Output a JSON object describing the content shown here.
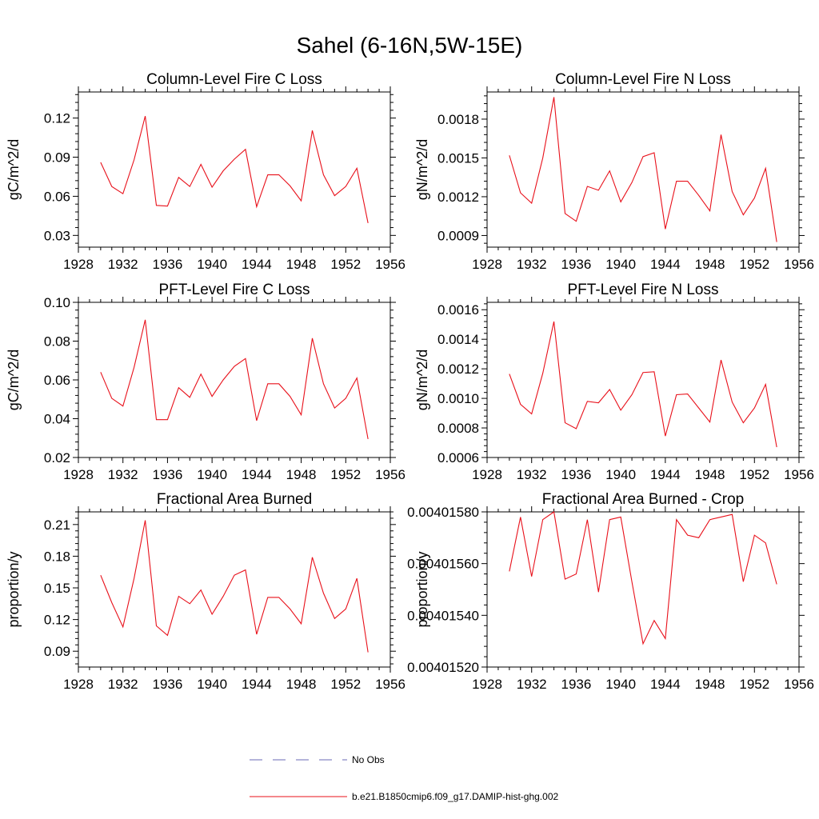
{
  "figure": {
    "title": "Sahel (6-16N,5W-15E)"
  },
  "legend": {
    "entries": [
      {
        "label": "No Obs",
        "color": "#6a6ab4",
        "style": "dashed"
      },
      {
        "label": "b.e21.B1850cmip6.f09_g17.DAMIP-hist-ghg.002",
        "color": "#e8101a",
        "style": "solid"
      }
    ]
  },
  "chart_data": [
    {
      "type": "line",
      "title": "Column-Level Fire C Loss",
      "ylabel": "gC/m^2/d",
      "xlim": [
        1928,
        1956
      ],
      "ylim": [
        0.021,
        0.14
      ],
      "xticks": [
        1928,
        1932,
        1936,
        1940,
        1944,
        1948,
        1952,
        1956
      ],
      "xtick_labels": [
        "1928",
        "1932",
        "1936",
        "1940",
        "1944",
        "1948",
        "1952",
        "1956"
      ],
      "yticks": [
        0.03,
        0.06,
        0.09,
        0.12
      ],
      "ytick_labels": [
        "0.03",
        "0.06",
        "0.09",
        "0.12"
      ],
      "grid": false,
      "x": [
        1930,
        1931,
        1932,
        1933,
        1934,
        1935,
        1936,
        1937,
        1938,
        1939,
        1940,
        1941,
        1942,
        1943,
        1944,
        1945,
        1946,
        1947,
        1948,
        1949,
        1950,
        1951,
        1952,
        1953,
        1954
      ],
      "series": [
        {
          "name": "b.e21.B1850cmip6.f09_g17.DAMIP-hist-ghg.002",
          "color": "#e8101a",
          "values": [
            0.086,
            0.0675,
            0.062,
            0.088,
            0.1215,
            0.053,
            0.0525,
            0.0745,
            0.0675,
            0.0845,
            0.067,
            0.0795,
            0.0885,
            0.096,
            0.052,
            0.0765,
            0.0765,
            0.068,
            0.0565,
            0.1105,
            0.0765,
            0.0605,
            0.0675,
            0.0815,
            0.0395
          ]
        }
      ]
    },
    {
      "type": "line",
      "title": "Column-Level Fire N Loss",
      "ylabel": "gN/m^2/d",
      "xlim": [
        1928,
        1956
      ],
      "ylim": [
        0.00081,
        0.00201
      ],
      "xticks": [
        1928,
        1932,
        1936,
        1940,
        1944,
        1948,
        1952,
        1956
      ],
      "xtick_labels": [
        "1928",
        "1932",
        "1936",
        "1940",
        "1944",
        "1948",
        "1952",
        "1956"
      ],
      "yticks": [
        0.0009,
        0.0012,
        0.0015,
        0.0018
      ],
      "ytick_labels": [
        "0.0009",
        "0.0012",
        "0.0015",
        "0.0018"
      ],
      "grid": false,
      "x": [
        1930,
        1931,
        1932,
        1933,
        1934,
        1935,
        1936,
        1937,
        1938,
        1939,
        1940,
        1941,
        1942,
        1943,
        1944,
        1945,
        1946,
        1947,
        1948,
        1949,
        1950,
        1951,
        1952,
        1953,
        1954
      ],
      "series": [
        {
          "name": "b.e21.B1850cmip6.f09_g17.DAMIP-hist-ghg.002",
          "color": "#e8101a",
          "values": [
            0.00152,
            0.00123,
            0.00115,
            0.0015,
            0.00197,
            0.00107,
            0.00101,
            0.00128,
            0.00125,
            0.0014,
            0.00116,
            0.00131,
            0.00151,
            0.00154,
            0.00095,
            0.00132,
            0.00132,
            0.00121,
            0.00109,
            0.00168,
            0.00124,
            0.00106,
            0.00119,
            0.00142,
            0.00085
          ]
        }
      ]
    },
    {
      "type": "line",
      "title": "PFT-Level Fire C Loss",
      "ylabel": "gC/m^2/d",
      "xlim": [
        1928,
        1956
      ],
      "ylim": [
        0.02,
        0.1
      ],
      "xticks": [
        1928,
        1932,
        1936,
        1940,
        1944,
        1948,
        1952,
        1956
      ],
      "xtick_labels": [
        "1928",
        "1932",
        "1936",
        "1940",
        "1944",
        "1948",
        "1952",
        "1956"
      ],
      "yticks": [
        0.02,
        0.04,
        0.06,
        0.08,
        0.1
      ],
      "ytick_labels": [
        "0.02",
        "0.04",
        "0.06",
        "0.08",
        "0.10"
      ],
      "grid": false,
      "x": [
        1930,
        1931,
        1932,
        1933,
        1934,
        1935,
        1936,
        1937,
        1938,
        1939,
        1940,
        1941,
        1942,
        1943,
        1944,
        1945,
        1946,
        1947,
        1948,
        1949,
        1950,
        1951,
        1952,
        1953,
        1954
      ],
      "series": [
        {
          "name": "b.e21.B1850cmip6.f09_g17.DAMIP-hist-ghg.002",
          "color": "#e8101a",
          "values": [
            0.064,
            0.0505,
            0.0465,
            0.0665,
            0.091,
            0.0395,
            0.0395,
            0.056,
            0.051,
            0.063,
            0.0515,
            0.06,
            0.067,
            0.071,
            0.039,
            0.058,
            0.058,
            0.0515,
            0.042,
            0.0815,
            0.058,
            0.0455,
            0.0505,
            0.061,
            0.0295
          ]
        }
      ]
    },
    {
      "type": "line",
      "title": "PFT-Level Fire N Loss",
      "ylabel": "gN/m^2/d",
      "xlim": [
        1928,
        1956
      ],
      "ylim": [
        0.0006,
        0.00165
      ],
      "xticks": [
        1928,
        1932,
        1936,
        1940,
        1944,
        1948,
        1952,
        1956
      ],
      "xtick_labels": [
        "1928",
        "1932",
        "1936",
        "1940",
        "1944",
        "1948",
        "1952",
        "1956"
      ],
      "yticks": [
        0.0006,
        0.0008,
        0.001,
        0.0012,
        0.0014,
        0.0016
      ],
      "ytick_labels": [
        "0.0006",
        "0.0008",
        "0.0010",
        "0.0012",
        "0.0014",
        "0.0016"
      ],
      "grid": false,
      "x": [
        1930,
        1931,
        1932,
        1933,
        1934,
        1935,
        1936,
        1937,
        1938,
        1939,
        1940,
        1941,
        1942,
        1943,
        1944,
        1945,
        1946,
        1947,
        1948,
        1949,
        1950,
        1951,
        1952,
        1953,
        1954
      ],
      "series": [
        {
          "name": "b.e21.B1850cmip6.f09_g17.DAMIP-hist-ghg.002",
          "color": "#e8101a",
          "values": [
            0.001165,
            0.00096,
            0.000895,
            0.00117,
            0.00152,
            0.000835,
            0.000795,
            0.00098,
            0.00097,
            0.00106,
            0.00092,
            0.001025,
            0.001175,
            0.00118,
            0.000745,
            0.001025,
            0.00103,
            0.000935,
            0.00084,
            0.00126,
            0.000975,
            0.000835,
            0.000935,
            0.001095,
            0.00067
          ]
        }
      ]
    },
    {
      "type": "line",
      "title": "Fractional Area Burned",
      "ylabel": "proportion/y",
      "xlim": [
        1928,
        1956
      ],
      "ylim": [
        0.075,
        0.222
      ],
      "xticks": [
        1928,
        1932,
        1936,
        1940,
        1944,
        1948,
        1952,
        1956
      ],
      "xtick_labels": [
        "1928",
        "1932",
        "1936",
        "1940",
        "1944",
        "1948",
        "1952",
        "1956"
      ],
      "yticks": [
        0.09,
        0.12,
        0.15,
        0.18,
        0.21
      ],
      "ytick_labels": [
        "0.09",
        "0.12",
        "0.15",
        "0.18",
        "0.21"
      ],
      "grid": false,
      "x": [
        1930,
        1931,
        1932,
        1933,
        1934,
        1935,
        1936,
        1937,
        1938,
        1939,
        1940,
        1941,
        1942,
        1943,
        1944,
        1945,
        1946,
        1947,
        1948,
        1949,
        1950,
        1951,
        1952,
        1953,
        1954
      ],
      "series": [
        {
          "name": "b.e21.B1850cmip6.f09_g17.DAMIP-hist-ghg.002",
          "color": "#e8101a",
          "values": [
            0.162,
            0.136,
            0.113,
            0.159,
            0.214,
            0.114,
            0.105,
            0.142,
            0.135,
            0.148,
            0.125,
            0.142,
            0.162,
            0.167,
            0.106,
            0.141,
            0.141,
            0.13,
            0.116,
            0.179,
            0.145,
            0.121,
            0.13,
            0.159,
            0.089
          ]
        }
      ]
    },
    {
      "type": "line",
      "title": "Fractional Area Burned - Crop",
      "ylabel": "proportion/y",
      "xlim": [
        1928,
        1956
      ],
      "ylim": [
        0.0040152,
        0.0040158
      ],
      "xticks": [
        1928,
        1932,
        1936,
        1940,
        1944,
        1948,
        1952,
        1956
      ],
      "xtick_labels": [
        "1928",
        "1932",
        "1936",
        "1940",
        "1944",
        "1948",
        "1952",
        "1956"
      ],
      "yticks": [
        0.0040152,
        0.0040154,
        0.0040156,
        0.0040158
      ],
      "ytick_labels": [
        "0.00401520",
        "0.00401540",
        "0.00401560",
        "0.00401580"
      ],
      "grid": false,
      "x": [
        1930,
        1931,
        1932,
        1933,
        1934,
        1935,
        1936,
        1937,
        1938,
        1939,
        1940,
        1941,
        1942,
        1943,
        1944,
        1945,
        1946,
        1947,
        1948,
        1949,
        1950,
        1951,
        1952,
        1953,
        1954
      ],
      "series": [
        {
          "name": "b.e21.B1850cmip6.f09_g17.DAMIP-hist-ghg.002",
          "color": "#e8101a",
          "values": [
            0.00401557,
            0.00401578,
            0.00401555,
            0.00401577,
            0.0040158,
            0.00401554,
            0.00401556,
            0.00401577,
            0.00401549,
            0.00401577,
            0.00401578,
            0.00401553,
            0.00401529,
            0.00401538,
            0.00401531,
            0.00401577,
            0.00401571,
            0.0040157,
            0.00401577,
            0.00401578,
            0.00401579,
            0.00401553,
            0.00401571,
            0.00401568,
            0.00401552
          ]
        }
      ]
    }
  ]
}
